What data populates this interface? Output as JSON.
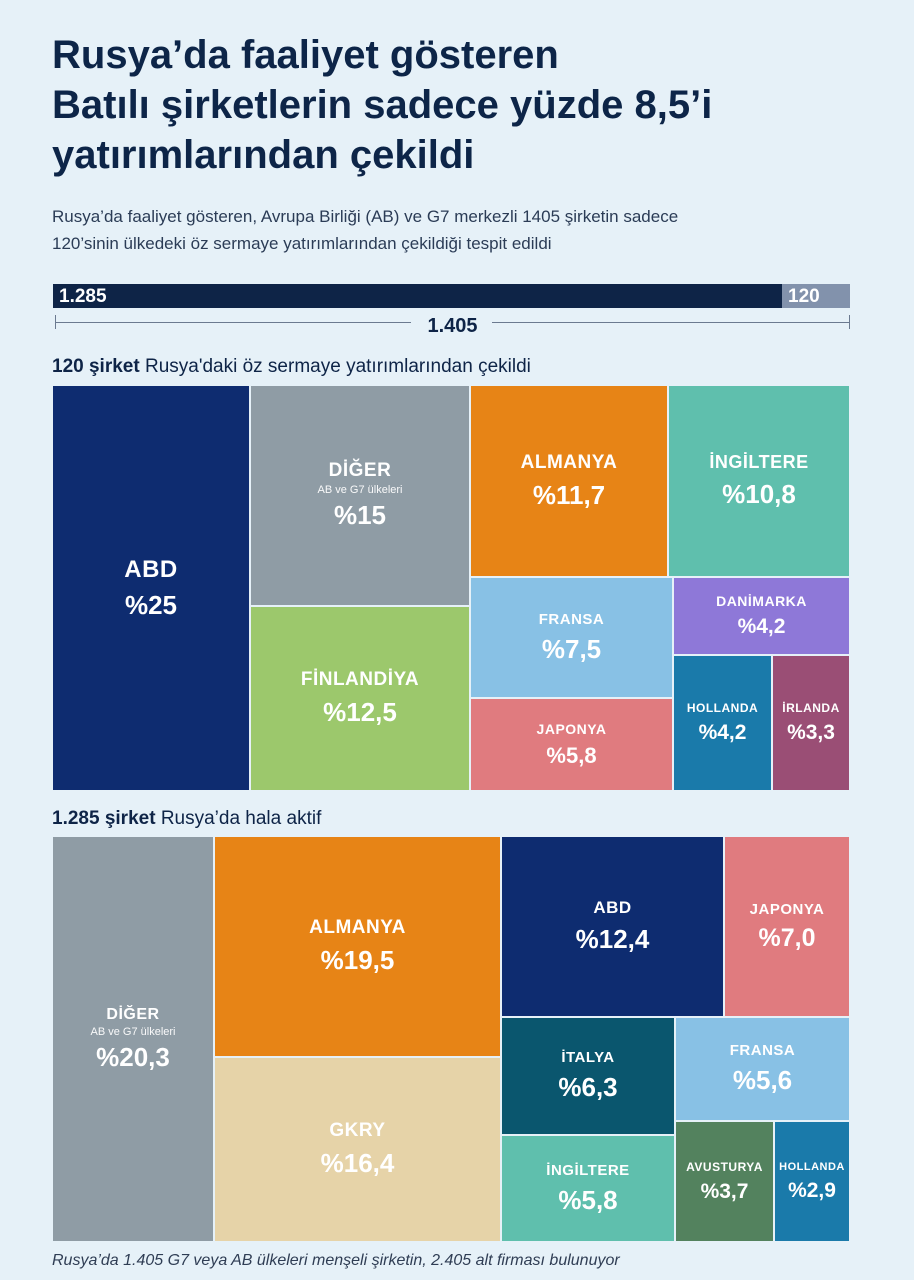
{
  "title": {
    "line1": "Rusya’da faaliyet gösteren",
    "line2": "Batılı şirketlerin sadece yüzde 8,5’i",
    "line3": "yatırımlarından çekildi"
  },
  "subtitle": {
    "line1": "Rusya’da faaliyet gösteren, Avrupa Birliği (AB) ve G7 merkezli 1405 şirketin sadece",
    "line2": "120’sinin ülkedeki öz sermaye yatırımlarından çekildiği tespit edildi"
  },
  "summary_bar": {
    "active_label": "1.285",
    "withdrawn_label": "120",
    "total_label": "1.405",
    "active_value": 1285,
    "withdrawn_value": 120,
    "total_value": 1405,
    "colors": {
      "active": "#0e2447",
      "withdrawn": "#8292ac"
    }
  },
  "section_withdrawn": {
    "count": "120 şirket",
    "text": "Rusya'daki öz sermaye yatırımlarından çekildi"
  },
  "section_active": {
    "count": "1.285 şirket",
    "text": "Rusya’da hala aktif"
  },
  "footnote": "Rusya’da 1.405 G7 veya AB ülkeleri menşeli şirketin, 2.405 alt firması bulunuyor",
  "chart_data": [
    {
      "type": "treemap",
      "title": "120 şirket Rusya'daki öz sermaye yatırımlarından çekildi",
      "unit": "%",
      "tiles": [
        {
          "id": "abd",
          "label": "ABD",
          "value_label": "%25",
          "value": 25,
          "color": "#0e2c70"
        },
        {
          "id": "diger",
          "label": "DİĞER",
          "sublabel": "AB ve G7 ülkeleri",
          "value_label": "%15",
          "value": 15,
          "color": "#8f9ca5"
        },
        {
          "id": "finlandiya",
          "label": "FİNLANDİYA",
          "value_label": "%12,5",
          "value": 12.5,
          "color": "#9cc86c"
        },
        {
          "id": "almanya",
          "label": "ALMANYA",
          "value_label": "%11,7",
          "value": 11.7,
          "color": "#e78416"
        },
        {
          "id": "ingiltere",
          "label": "İNGİLTERE",
          "value_label": "%10,8",
          "value": 10.8,
          "color": "#5fbfad"
        },
        {
          "id": "fransa",
          "label": "FRANSA",
          "value_label": "%7,5",
          "value": 7.5,
          "color": "#88c1e5"
        },
        {
          "id": "japonya",
          "label": "JAPONYA",
          "value_label": "%5,8",
          "value": 5.8,
          "color": "#e07b7f"
        },
        {
          "id": "danimarka",
          "label": "DANİMARKA",
          "value_label": "%4,2",
          "value": 4.2,
          "color": "#8e78d8"
        },
        {
          "id": "hollanda",
          "label": "HOLLANDA",
          "value_label": "%4,2",
          "value": 4.2,
          "color": "#1a7aaa"
        },
        {
          "id": "irlanda",
          "label": "İRLANDA",
          "value_label": "%3,3",
          "value": 3.3,
          "color": "#9a4e75"
        }
      ]
    },
    {
      "type": "treemap",
      "title": "1.285 şirket Rusya’da hala aktif",
      "unit": "%",
      "tiles": [
        {
          "id": "diger",
          "label": "DİĞER",
          "sublabel": "AB ve G7 ülkeleri",
          "value_label": "%20,3",
          "value": 20.3,
          "color": "#8f9ca5"
        },
        {
          "id": "almanya",
          "label": "ALMANYA",
          "value_label": "%19,5",
          "value": 19.5,
          "color": "#e78416"
        },
        {
          "id": "gkry",
          "label": "GKRY",
          "value_label": "%16,4",
          "value": 16.4,
          "color": "#e6d3a8"
        },
        {
          "id": "abd",
          "label": "ABD",
          "value_label": "%12,4",
          "value": 12.4,
          "color": "#0e2c70"
        },
        {
          "id": "japonya",
          "label": "JAPONYA",
          "value_label": "%7,0",
          "value": 7.0,
          "color": "#e07b7f"
        },
        {
          "id": "italya",
          "label": "İTALYA",
          "value_label": "%6,3",
          "value": 6.3,
          "color": "#0a566e"
        },
        {
          "id": "fransa",
          "label": "FRANSA",
          "value_label": "%5,6",
          "value": 5.6,
          "color": "#88c1e5"
        },
        {
          "id": "ingiltere",
          "label": "İNGİLTERE",
          "value_label": "%5,8",
          "value": 5.8,
          "color": "#5fbfad"
        },
        {
          "id": "avusturya",
          "label": "AVUSTURYA",
          "value_label": "%3,7",
          "value": 3.7,
          "color": "#53825e"
        },
        {
          "id": "hollanda",
          "label": "HOLLANDA",
          "value_label": "%2,9",
          "value": 2.9,
          "color": "#1a7aaa"
        }
      ]
    }
  ]
}
